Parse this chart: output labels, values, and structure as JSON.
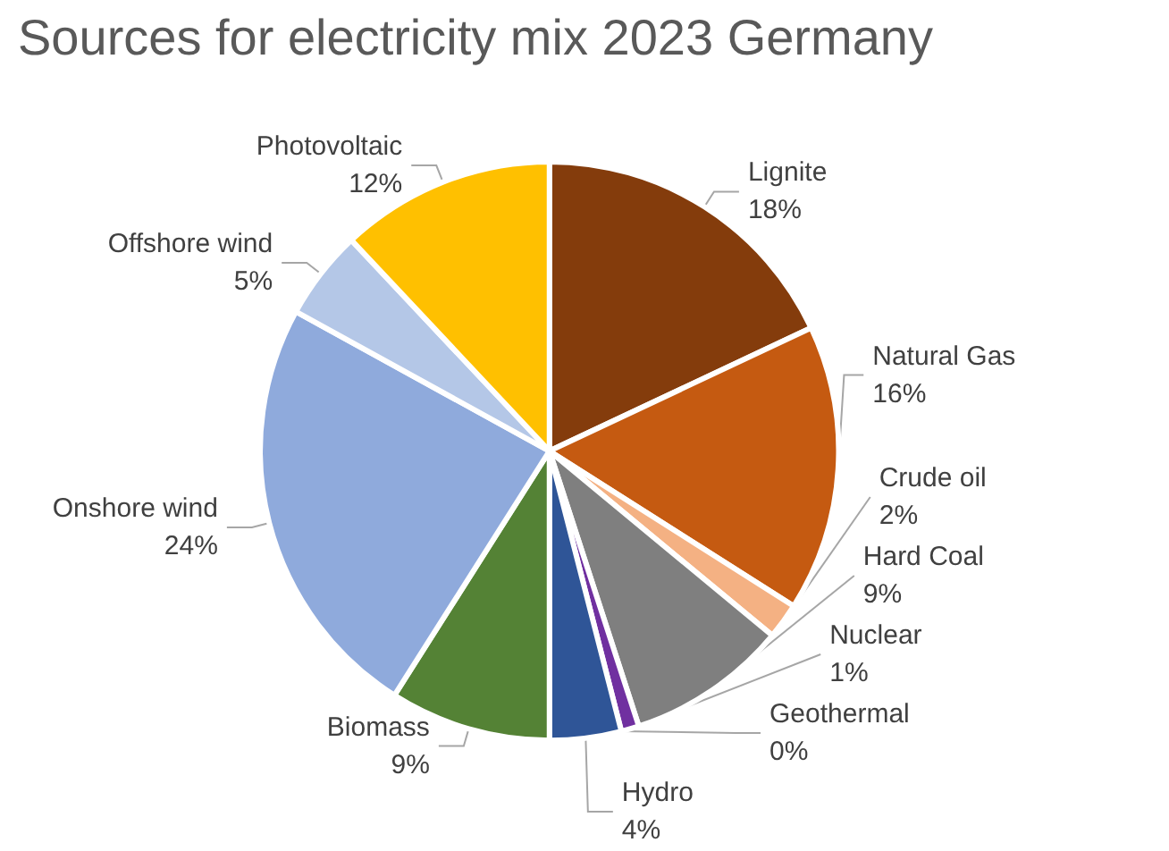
{
  "chart_data": {
    "type": "pie",
    "title": "Sources for electricity mix 2023 Germany",
    "categories": [
      "Lignite",
      "Natural Gas",
      "Crude oil",
      "Hard Coal",
      "Nuclear",
      "Geothermal",
      "Hydro",
      "Biomass",
      "Onshore wind",
      "Offshore wind",
      "Photovoltaic"
    ],
    "values": [
      18,
      16,
      2,
      9,
      1,
      0,
      4,
      9,
      24,
      5,
      12
    ],
    "colors": [
      "#843c0c",
      "#c55a11",
      "#f4b183",
      "#7f7f7f",
      "#7030a0",
      "#a9d18e",
      "#2f5597",
      "#548235",
      "#8faadc",
      "#b4c7e7",
      "#ffc000"
    ],
    "value_labels": [
      "18%",
      "16%",
      "2%",
      "9%",
      "1%",
      "0%",
      "4%",
      "9%",
      "24%",
      "5%",
      "12%"
    ],
    "legend": false
  }
}
